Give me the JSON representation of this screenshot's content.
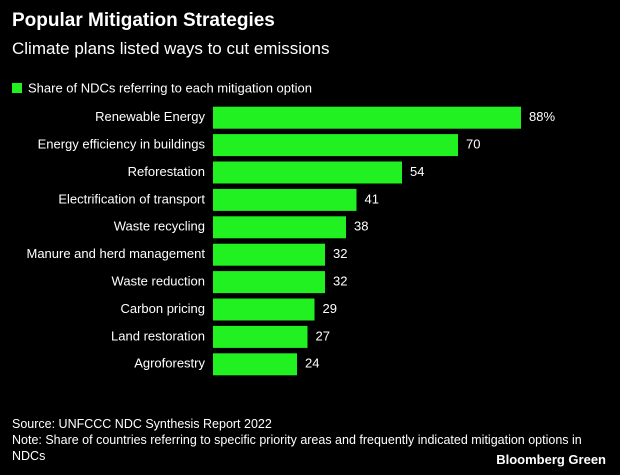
{
  "chart_data": {
    "type": "bar",
    "orientation": "horizontal",
    "title": "Popular Mitigation Strategies",
    "subtitle": "Climate plans listed ways to cut emissions",
    "series": [
      {
        "name": "Share of NDCs referring to each mitigation option",
        "color": "#21f021",
        "values": [
          88,
          70,
          54,
          41,
          38,
          32,
          32,
          29,
          27,
          24
        ],
        "value_labels": [
          "88%",
          "70",
          "54",
          "41",
          "38",
          "32",
          "32",
          "29",
          "27",
          "24"
        ]
      }
    ],
    "categories": [
      "Renewable Energy",
      "Energy efficiency in buildings",
      "Reforestation",
      "Electrification of transport",
      "Waste recycling",
      "Manure and herd management",
      "Waste reduction",
      "Carbon pricing",
      "Land restoration",
      "Agroforestry"
    ],
    "source": "Source: UNFCCC NDC Synthesis Report 2022",
    "note": "Note: Share of countries referring to specific priority areas and frequently indicated mitigation options in NDCs",
    "branding": "Bloomberg Green"
  }
}
